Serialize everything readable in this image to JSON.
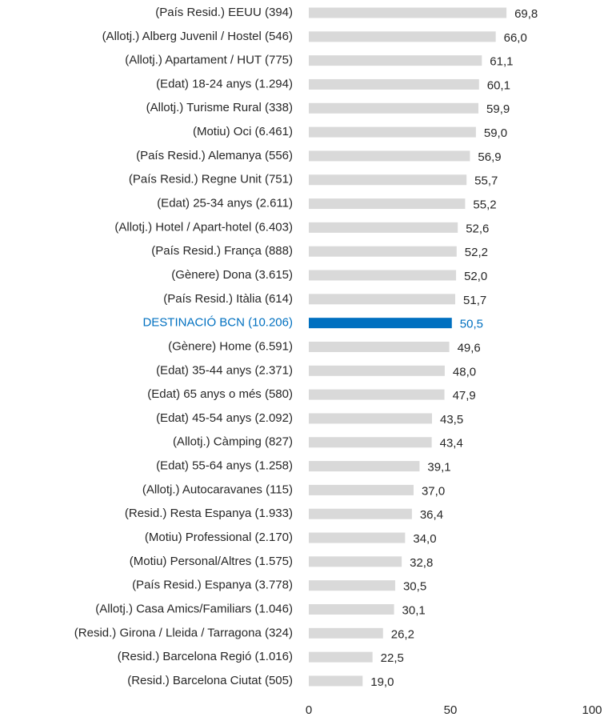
{
  "chart_data": {
    "type": "bar",
    "orientation": "horizontal",
    "categories": [
      "(País Resid.) EEUU (394)",
      "(Allotj.) Alberg Juvenil / Hostel  (546)",
      "(Allotj.) Apartament / HUT (775)",
      "(Edat) 18-24 anys (1.294)",
      "(Allotj.) Turisme Rural (338)",
      "(Motiu) Oci (6.461)",
      "(País Resid.) Alemanya (556)",
      "(País Resid.) Regne Unit (751)",
      "(Edat) 25-34 anys  (2.611)",
      "(Allotj.) Hotel / Apart-hotel (6.403)",
      "(País Resid.) França (888)",
      "(Gènere) Dona (3.615)",
      "(País Resid.) Itàlia (614)",
      "DESTINACIÓ BCN (10.206)",
      "(Gènere) Home (6.591)",
      "(Edat) 35-44 anys (2.371)",
      "(Edat) 65 anys o més (580)",
      "(Edat) 45-54 anys (2.092)",
      "(Allotj.) Càmping (827)",
      "(Edat) 55-64 anys (1.258)",
      "(Allotj.) Autocaravanes (115)",
      "(Resid.) Resta Espanya (1.933)",
      "(Motiu) Professional (2.170)",
      "(Motiu) Personal/Altres (1.575)",
      "(País Resid.) Espanya (3.778)",
      "(Allotj.) Casa Amics/Familiars (1.046)",
      "(Resid.) Girona / Lleida / Tarragona (324)",
      "(Resid.) Barcelona Regió (1.016)",
      "(Resid.) Barcelona Ciutat (505)"
    ],
    "values": [
      69.8,
      66.0,
      61.1,
      60.1,
      59.9,
      59.0,
      56.9,
      55.7,
      55.2,
      52.6,
      52.2,
      52.0,
      51.7,
      50.5,
      49.6,
      48.0,
      47.9,
      43.5,
      43.4,
      39.1,
      37.0,
      36.4,
      34.0,
      32.8,
      30.5,
      30.1,
      26.2,
      22.5,
      19.0
    ],
    "value_labels": [
      "69,8",
      "66,0",
      "61,1",
      "60,1",
      "59,9",
      "59,0",
      "56,9",
      "55,7",
      "55,2",
      "52,6",
      "52,2",
      "52,0",
      "51,7",
      "50,5",
      "49,6",
      "48,0",
      "47,9",
      "43,5",
      "43,4",
      "39,1",
      "37,0",
      "36,4",
      "34,0",
      "32,8",
      "30,5",
      "30,1",
      "26,2",
      "22,5",
      "19,0"
    ],
    "color": "#d9d9d9",
    "colors": [
      "#d9d9d9",
      "#d9d9d9",
      "#d9d9d9",
      "#d9d9d9",
      "#d9d9d9",
      "#d9d9d9",
      "#d9d9d9",
      "#d9d9d9",
      "#d9d9d9",
      "#d9d9d9",
      "#d9d9d9",
      "#d9d9d9",
      "#d9d9d9",
      "#0070c0",
      "#d9d9d9",
      "#d9d9d9",
      "#d9d9d9",
      "#d9d9d9",
      "#d9d9d9",
      "#d9d9d9",
      "#d9d9d9",
      "#d9d9d9",
      "#d9d9d9",
      "#d9d9d9",
      "#d9d9d9",
      "#d9d9d9",
      "#d9d9d9",
      "#d9d9d9",
      "#d9d9d9"
    ],
    "xlim": [
      0,
      100
    ],
    "xticks": [
      0,
      50,
      100
    ],
    "grid": false
  }
}
